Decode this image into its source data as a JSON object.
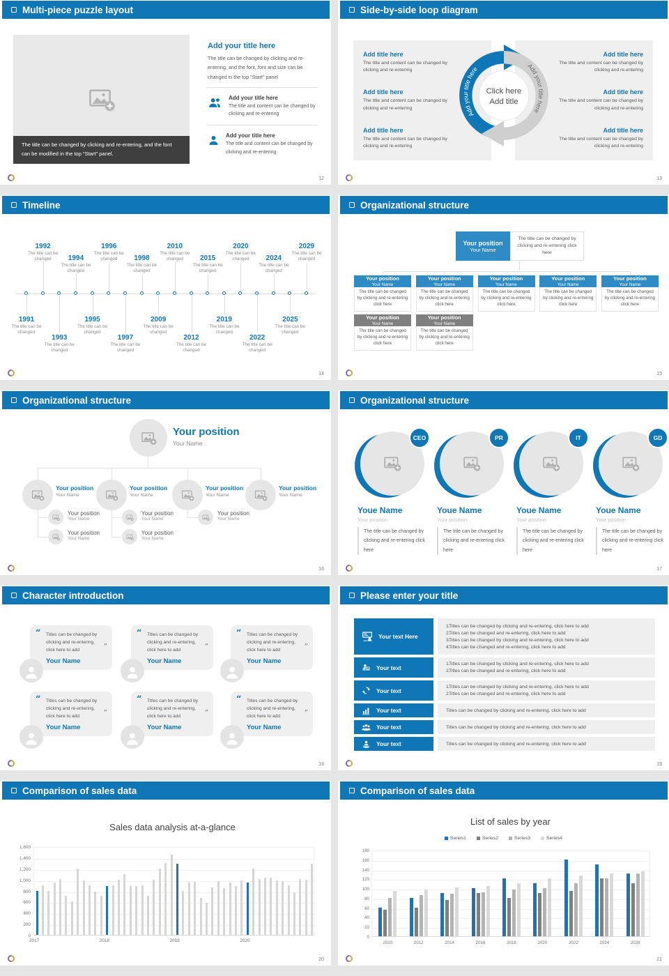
{
  "colors": {
    "header_blue": "#1077b7",
    "accent_blue": "#1878b8",
    "chart_blue": "#2272b2",
    "bar_gray": "#d6d6d6",
    "text_gray": "#595959",
    "panel_gray": "#efefef",
    "caption_dark": "#3f3f3f",
    "box_gray": "#7f7f7f"
  },
  "slides": {
    "puzzle": {
      "header": "Multi-piece puzzle layout",
      "page": "12",
      "image_caption": "The title can be changed by clicking and re-entering, and the font can be modified in the top \"Start\" panel.",
      "title": "Add your title here",
      "body": "The title can be changed by clicking and re-entering, and the font, font and size can be changed in the top \"Start\" panel",
      "items": [
        {
          "title": "Add your title here",
          "body": "The title and content can be changed by clicking and re-entering"
        },
        {
          "title": "Add your title here",
          "body": "The title and content can be changed by clicking and re-entering"
        }
      ]
    },
    "loop": {
      "header": "Side-by-side loop diagram",
      "page": "13",
      "entry_title": "Add title here",
      "entry_body": "The title and content can be changed by clicking and re-entering",
      "center_line1": "Click here",
      "center_line2": "Add title",
      "arc_label": "Add your title here"
    },
    "timeline": {
      "header": "Timeline",
      "page": "14",
      "caption": "The title can be changed",
      "events": [
        {
          "year": "1991",
          "side": "b",
          "lvl": 1
        },
        {
          "year": "1992",
          "side": "a",
          "lvl": 2
        },
        {
          "year": "1993",
          "side": "b",
          "lvl": 2
        },
        {
          "year": "1994",
          "side": "a",
          "lvl": 1
        },
        {
          "year": "1995",
          "side": "b",
          "lvl": 1
        },
        {
          "year": "1996",
          "side": "a",
          "lvl": 2
        },
        {
          "year": "1997",
          "side": "b",
          "lvl": 2
        },
        {
          "year": "1998",
          "side": "a",
          "lvl": 1
        },
        {
          "year": "2009",
          "side": "b",
          "lvl": 1
        },
        {
          "year": "2010",
          "side": "a",
          "lvl": 2
        },
        {
          "year": "2012",
          "side": "b",
          "lvl": 2
        },
        {
          "year": "2015",
          "side": "a",
          "lvl": 1
        },
        {
          "year": "2019",
          "side": "b",
          "lvl": 1
        },
        {
          "year": "2020",
          "side": "a",
          "lvl": 2
        },
        {
          "year": "2022",
          "side": "b",
          "lvl": 2
        },
        {
          "year": "2024",
          "side": "a",
          "lvl": 1
        },
        {
          "year": "2025",
          "side": "b",
          "lvl": 1
        },
        {
          "year": "2029",
          "side": "a",
          "lvl": 2
        }
      ]
    },
    "org_boxes": {
      "header": "Organizational structure",
      "page": "15",
      "box_title": "Your position",
      "box_name": "Your Name",
      "note": "The title can be changed by clicking and re-entering click here"
    },
    "org_tree": {
      "header": "Organizational structure",
      "page": "16",
      "title": "Your position",
      "name": "Your Name"
    },
    "org_circles": {
      "header": "Organizational structure",
      "page": "17",
      "badges": [
        "CEO",
        "PR",
        "IT",
        "GD"
      ],
      "name": "Youe Name",
      "position": "Your position",
      "body": "The title can be changed by clicking and re-entering click here"
    },
    "characters": {
      "header": "Character introduction",
      "page": "18",
      "quote": "Titles can be changed by clicking and re-entering, click here to add",
      "name": "Your Name",
      "open_quote": "“",
      "close_quote": "”"
    },
    "list": {
      "header": "Please enter your title",
      "page": "19",
      "rows": [
        {
          "label": "Your text Here",
          "icon": "presentation-icon",
          "items": [
            {
              "n": "1.",
              "t": "Titles can be changed by clicking and re-entering, click here to add"
            },
            {
              "n": "2.",
              "t": "Titles can be changed and re-entering, click here to add"
            },
            {
              "n": "3.",
              "t": "Titles can be changed by clicking and re-entering, click here to add"
            },
            {
              "n": "4.",
              "t": "Titles can be changed and re-entering, click here to add"
            }
          ]
        },
        {
          "label": "Your text",
          "icon": "user-desk-icon",
          "items": [
            {
              "n": "1.",
              "t": "Titles can be changed by clicking and re-entering, click here to add"
            },
            {
              "n": "2.",
              "t": "Titles can be changed and re-entering, click here to add"
            }
          ]
        },
        {
          "label": "Your text",
          "icon": "sync-icon",
          "items": [
            {
              "n": "1.",
              "t": "Titles can be changed by clicking and re-entering, click here to add"
            },
            {
              "n": "2.",
              "t": "Titles can be changed and re-entering, click here to add"
            }
          ]
        },
        {
          "label": "Your text",
          "icon": "bar-chart-icon",
          "single": "Titles can be changed by clicking and re-entering, click here to add"
        },
        {
          "label": "Your text",
          "icon": "team-icon",
          "single": "Titles can be changed by clicking and re-entering, click here to add"
        },
        {
          "label": "Your text",
          "icon": "service-icon",
          "single": "Titles can be changed by clicking and re-entering, click here to add"
        }
      ]
    },
    "chart1": {
      "header": "Comparison of sales data",
      "page": "20"
    },
    "chart2": {
      "header": "Comparison of sales data",
      "page": "21"
    }
  },
  "chart_data": [
    {
      "type": "bar",
      "title": "Sales data analysis at-a-glance",
      "xlabel": "",
      "ylabel": "",
      "ylim": [
        0,
        1600
      ],
      "ytick_step": 200,
      "grid": true,
      "legend": "none",
      "bar_color": "#d6d6d6",
      "highlight_color": "#2272b2",
      "highlight_indexes": [
        0,
        12,
        24,
        36
      ],
      "x_tick_labels": [
        "2017",
        "2018",
        "2019",
        "2020"
      ],
      "values": [
        800,
        900,
        800,
        950,
        1010,
        700,
        610,
        1200,
        980,
        890,
        780,
        700,
        880,
        890,
        990,
        1100,
        890,
        880,
        900,
        700,
        1000,
        1200,
        1300,
        1450,
        1290,
        800,
        950,
        960,
        670,
        580,
        860,
        970,
        850,
        950,
        880,
        980,
        950,
        1200,
        1010,
        1030,
        1030,
        980,
        970,
        890,
        770,
        1010,
        1000,
        1290
      ]
    },
    {
      "type": "bar",
      "title": "List of sales by year",
      "xlabel": "",
      "ylabel": "",
      "ylim": [
        0,
        180
      ],
      "ytick_step": 20,
      "grid": true,
      "legend_position": "top",
      "categories": [
        "2010",
        "2012",
        "2014",
        "2016",
        "2018",
        "2020",
        "2022",
        "2024",
        "2026"
      ],
      "series": [
        {
          "name": "Series1",
          "color": "#2272b2",
          "values": [
            60,
            80,
            90,
            100,
            120,
            110,
            160,
            150,
            130
          ]
        },
        {
          "name": "Series2",
          "color": "#7f7f7f",
          "values": [
            55,
            60,
            75,
            90,
            80,
            90,
            95,
            120,
            110
          ]
        },
        {
          "name": "Series3",
          "color": "#b3b3b3",
          "values": [
            80,
            85,
            88,
            92,
            97,
            100,
            110,
            120,
            130
          ]
        },
        {
          "name": "Series4",
          "color": "#d9d9d9",
          "values": [
            95,
            98,
            102,
            105,
            110,
            120,
            126,
            130,
            135
          ]
        }
      ]
    }
  ]
}
